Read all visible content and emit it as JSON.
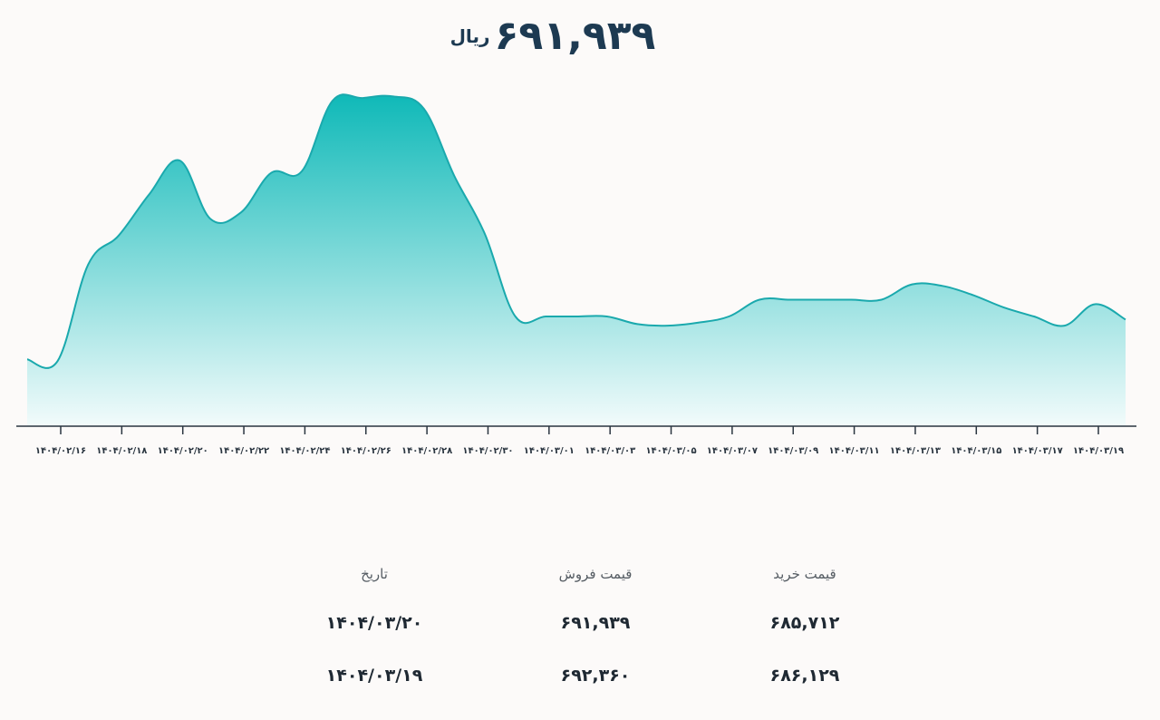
{
  "headline": {
    "price": "۶۹۱,۹۳۹",
    "unit": "ریال"
  },
  "chart_data": {
    "type": "area",
    "x_ticks": [
      "۱۴۰۴/۰۲/۱۶",
      "۱۴۰۴/۰۲/۱۸",
      "۱۴۰۴/۰۲/۲۰",
      "۱۴۰۴/۰۲/۲۲",
      "۱۴۰۴/۰۲/۲۴",
      "۱۴۰۴/۰۲/۲۶",
      "۱۴۰۴/۰۲/۲۸",
      "۱۴۰۴/۰۲/۳۰",
      "۱۴۰۴/۰۳/۰۱",
      "۱۴۰۴/۰۳/۰۳",
      "۱۴۰۴/۰۳/۰۵",
      "۱۴۰۴/۰۳/۰۷",
      "۱۴۰۴/۰۳/۰۹",
      "۱۴۰۴/۰۳/۱۱",
      "۱۴۰۴/۰۳/۱۳",
      "۱۴۰۴/۰۳/۱۵",
      "۱۴۰۴/۰۳/۱۷",
      "۱۴۰۴/۰۳/۱۹"
    ],
    "x": [
      "1404/02/15",
      "1404/02/16",
      "1404/02/17",
      "1404/02/18",
      "1404/02/19",
      "1404/02/20",
      "1404/02/21",
      "1404/02/22",
      "1404/02/23",
      "1404/02/24",
      "1404/02/25",
      "1404/02/26",
      "1404/02/27",
      "1404/02/28",
      "1404/02/29",
      "1404/02/30",
      "1404/02/31",
      "1404/03/01",
      "1404/03/02",
      "1404/03/03",
      "1404/03/04",
      "1404/03/05",
      "1404/03/06",
      "1404/03/07",
      "1404/03/08",
      "1404/03/09",
      "1404/03/10",
      "1404/03/11",
      "1404/03/12",
      "1404/03/13",
      "1404/03/14",
      "1404/03/15",
      "1404/03/16",
      "1404/03/17",
      "1404/03/18",
      "1404/03/19",
      "1404/03/20"
    ],
    "values": [
      0.13,
      0.125,
      0.44,
      0.535,
      0.67,
      0.78,
      0.59,
      0.61,
      0.74,
      0.745,
      0.975,
      0.985,
      0.99,
      0.95,
      0.73,
      0.54,
      0.27,
      0.27,
      0.27,
      0.27,
      0.245,
      0.24,
      0.25,
      0.27,
      0.325,
      0.325,
      0.325,
      0.325,
      0.325,
      0.375,
      0.37,
      0.34,
      0.3,
      0.27,
      0.24,
      0.31,
      0.26
    ],
    "values_note": "relative level (0 = baseline, 1 = peak); axis has no printed values",
    "grid": false,
    "legend": "none",
    "colors": {
      "line": "#1aa9ad",
      "fill_top": "#0fb9b8",
      "fill_bottom": "#f2fbfb",
      "axis": "#2a3540"
    }
  },
  "table": {
    "headers": {
      "date": "تاریخ",
      "sell": "قیمت فروش",
      "buy": "قیمت خرید"
    },
    "rows": [
      {
        "date": "۱۴۰۴/۰۳/۲۰",
        "sell": "۶۹۱,۹۳۹",
        "buy": "۶۸۵,۷۱۲"
      },
      {
        "date": "۱۴۰۴/۰۳/۱۹",
        "sell": "۶۹۲,۳۶۰",
        "buy": "۶۸۶,۱۲۹"
      }
    ]
  }
}
